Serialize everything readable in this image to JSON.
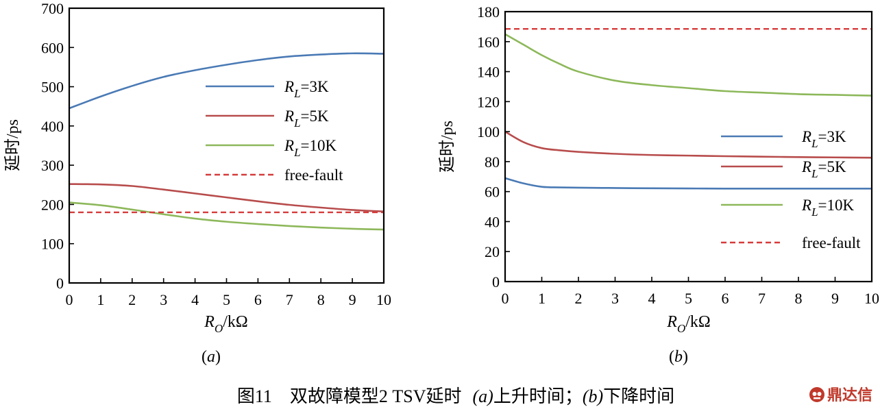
{
  "chart_data": [
    {
      "type": "line",
      "panel_label": "(a)",
      "xlabel": "R",
      "xlabel_sub": "O",
      "xlabel_unit": "/kΩ",
      "ylabel": "延时/ps",
      "xlim": [
        0,
        10
      ],
      "ylim": [
        0,
        700
      ],
      "xticks": [
        0,
        1,
        2,
        3,
        4,
        5,
        6,
        7,
        8,
        9,
        10
      ],
      "yticks": [
        0,
        100,
        200,
        300,
        400,
        500,
        600,
        700
      ],
      "grid": false,
      "legend_position": "right-center",
      "series": [
        {
          "name": "R",
          "name_sub": "L",
          "name_rest": "=3K",
          "color": "#4a7ab5",
          "style": "solid",
          "x": [
            0,
            1,
            2,
            3,
            4,
            5,
            6,
            7,
            8,
            9,
            10
          ],
          "y": [
            445,
            475,
            502,
            525,
            542,
            556,
            568,
            577,
            582,
            585,
            584
          ]
        },
        {
          "name": "R",
          "name_sub": "L",
          "name_rest": "=5K",
          "color": "#b84c4c",
          "style": "solid",
          "x": [
            0,
            1,
            2,
            3,
            4,
            5,
            6,
            7,
            8,
            9,
            10
          ],
          "y": [
            252,
            251,
            247,
            238,
            228,
            218,
            208,
            199,
            192,
            186,
            182
          ]
        },
        {
          "name": "R",
          "name_sub": "L",
          "name_rest": "=10K",
          "color": "#8db85a",
          "style": "solid",
          "x": [
            0,
            1,
            2,
            3,
            4,
            5,
            6,
            7,
            8,
            9,
            10
          ],
          "y": [
            205,
            198,
            187,
            175,
            164,
            156,
            150,
            145,
            141,
            138,
            136
          ]
        },
        {
          "name": "free-fault",
          "color": "#d63b3b",
          "style": "dashed",
          "x": [
            0,
            10
          ],
          "y": [
            180,
            180
          ]
        }
      ]
    },
    {
      "type": "line",
      "panel_label": "(b)",
      "xlabel": "R",
      "xlabel_sub": "O",
      "xlabel_unit": "/kΩ",
      "ylabel": "延时/ps",
      "xlim": [
        0,
        10
      ],
      "ylim": [
        0,
        180
      ],
      "xticks": [
        0,
        1,
        2,
        3,
        4,
        5,
        6,
        7,
        8,
        9,
        10
      ],
      "yticks": [
        0,
        20,
        40,
        60,
        80,
        100,
        120,
        140,
        160,
        180
      ],
      "grid": false,
      "legend_position": "right-lower",
      "series": [
        {
          "name": "R",
          "name_sub": "L",
          "name_rest": "=3K",
          "color": "#4a7ab5",
          "style": "solid",
          "x": [
            0,
            0.5,
            1,
            1.5,
            2,
            3,
            4,
            5,
            6,
            7,
            8,
            9,
            10
          ],
          "y": [
            69,
            65.5,
            63.2,
            62.8,
            62.6,
            62.4,
            62.2,
            62.1,
            62,
            62,
            62,
            62,
            62
          ]
        },
        {
          "name": "R",
          "name_sub": "L",
          "name_rest": "=5K",
          "color": "#b84c4c",
          "style": "solid",
          "x": [
            0,
            0.5,
            1,
            1.5,
            2,
            3,
            4,
            5,
            6,
            7,
            8,
            9,
            10
          ],
          "y": [
            100,
            93,
            89,
            87.5,
            86.5,
            85.2,
            84.4,
            84,
            83.6,
            83.3,
            83,
            82.8,
            82.6
          ]
        },
        {
          "name": "R",
          "name_sub": "L",
          "name_rest": "=10K",
          "color": "#8db85a",
          "style": "solid",
          "x": [
            0,
            0.5,
            1,
            1.5,
            2,
            3,
            4,
            5,
            6,
            7,
            8,
            9,
            10
          ],
          "y": [
            165,
            158,
            151,
            145,
            140,
            134,
            131,
            129,
            127,
            126,
            125,
            124.5,
            124
          ]
        },
        {
          "name": "free-fault",
          "color": "#d63b3b",
          "style": "dashed",
          "x": [
            0,
            10
          ],
          "y": [
            168.5,
            168.5
          ]
        }
      ]
    }
  ],
  "caption": {
    "prefix": "图11　双故障模型2 TSV延时",
    "part_a_italic": "(a)",
    "part_a_text": "上升时间；",
    "part_b_italic": "(b)",
    "part_b_text": "下降时间"
  },
  "brand": {
    "icon": "dingdaxin-logo-icon",
    "text": "鼎达信"
  }
}
